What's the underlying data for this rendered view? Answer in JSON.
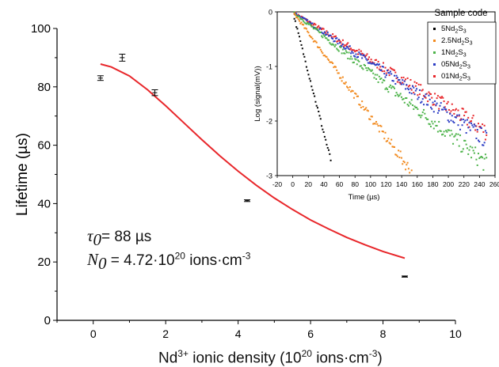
{
  "chart_data": [
    {
      "type": "scatter",
      "xlabel_parts": {
        "prefix": "Nd",
        "sup1": "3+",
        "mid": " ionic density (10",
        "sup2": "20",
        "suffix": " ions·cm",
        "sup3": "-3",
        "end": ")"
      },
      "ylabel": "Lifetime (µs)",
      "xlim": [
        -1,
        10
      ],
      "ylim": [
        0,
        100
      ],
      "xticks": [
        0,
        2,
        4,
        6,
        8,
        10
      ],
      "yticks": [
        0,
        20,
        40,
        60,
        80,
        100
      ],
      "series": [
        {
          "x": [
            0.2,
            0.8,
            1.7,
            4.25,
            8.6
          ],
          "y": [
            83,
            90,
            78,
            41,
            15
          ],
          "yerr": [
            0.8,
            1.2,
            1.0,
            0.3,
            0.2
          ],
          "color": "#000000"
        },
        {
          "type": "line",
          "color": "#e8262a",
          "x": [
            0.2,
            0.5,
            1.0,
            1.5,
            2.0,
            2.5,
            3.0,
            3.5,
            4.0,
            4.5,
            5.0,
            5.5,
            6.0,
            6.5,
            7.0,
            7.5,
            8.0,
            8.6
          ],
          "y": [
            87.8,
            86.8,
            83.7,
            79.0,
            73.5,
            67.7,
            61.9,
            56.3,
            51.1,
            46.3,
            41.9,
            38.0,
            34.4,
            31.3,
            28.4,
            25.9,
            23.6,
            21.3
          ]
        }
      ],
      "annotations": {
        "tau": {
          "symbol": "τ",
          "sub": "0",
          "text": "= 88 µs"
        },
        "n0": {
          "symbol": "N",
          "sub": "0",
          "text1": " = 4.72·10",
          "sup": "20",
          "text2": " ions·cm",
          "sup2": "-3"
        }
      }
    },
    {
      "type": "scatter",
      "xlabel": "Time (µs)",
      "ylabel": "Log (signal(mV))",
      "xlim": [
        -20,
        260
      ],
      "ylim": [
        -3,
        0
      ],
      "xticks": [
        -20,
        0,
        20,
        40,
        60,
        80,
        100,
        120,
        140,
        160,
        180,
        200,
        220,
        240,
        260
      ],
      "yticks": [
        0,
        -1,
        -2,
        -3
      ],
      "legend_title": "Sample code",
      "legend_position": "top-right",
      "series": [
        {
          "name_main": "5Nd",
          "name_sub1": "2",
          "name_mid": "S",
          "name_sub2": "3",
          "color": "#000000",
          "slope": -0.0556,
          "x_end": 50
        },
        {
          "name_main": "2.5Nd",
          "name_sub1": "2",
          "name_mid": "S",
          "name_sub2": "3",
          "color": "#f28a1e",
          "slope": -0.0192,
          "x_end": 155
        },
        {
          "name_main": "1Nd",
          "name_sub1": "2",
          "name_mid": "S",
          "name_sub2": "3",
          "color": "#4db34a",
          "slope": -0.0112,
          "x_end": 250
        },
        {
          "name_main": "05Nd",
          "name_sub1": "2",
          "name_mid": "S",
          "name_sub2": "3",
          "color": "#2b3cc4",
          "slope": -0.0094,
          "x_end": 250
        },
        {
          "name_main": "01Nd",
          "name_sub1": "2",
          "name_mid": "S",
          "name_sub2": "3",
          "color": "#e8262a",
          "slope": -0.0088,
          "x_end": 250
        }
      ]
    }
  ]
}
